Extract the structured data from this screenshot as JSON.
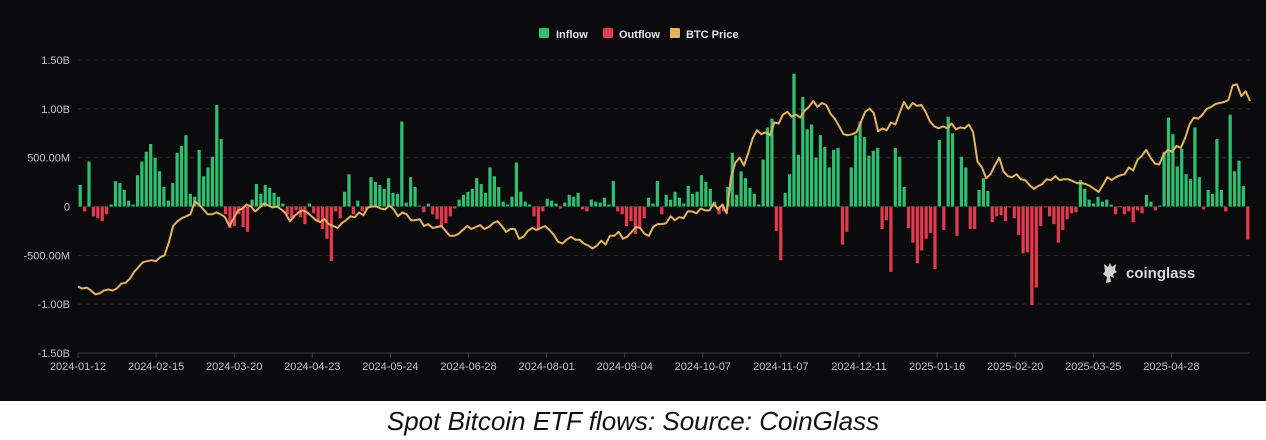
{
  "caption": "Spot Bitcoin ETF flows: Source: CoinGlass",
  "brand": {
    "text": "coinglass",
    "icon": "coinglass-logo-icon"
  },
  "colors": {
    "inflow": "#2fbf71",
    "outflow": "#e5394f",
    "price": "#e3b35f",
    "background": "#0b0b0d",
    "grid": "#2a2c31"
  },
  "chart_data": {
    "type": "bar",
    "legend": {
      "position": "top-center",
      "items": [
        {
          "label": "Inflow",
          "color": "#2fbf71"
        },
        {
          "label": "Outflow",
          "color": "#e5394f"
        },
        {
          "label": "BTC Price",
          "color": "#e3b35f"
        }
      ]
    },
    "y_axis": {
      "ticks": [
        1.5,
        1.0,
        0.5,
        0,
        -0.5,
        -1.0,
        -1.5
      ],
      "tick_labels": [
        "1.50B",
        "1.00B",
        "500.00M",
        "0",
        "-500.00M",
        "-1.00B",
        "-1.50B"
      ],
      "ylim": [
        -1.5,
        1.5
      ],
      "unit": "billion USD"
    },
    "x_axis": {
      "tick_labels": [
        "2024-01-12",
        "2024-02-15",
        "2024-03-20",
        "2024-04-23",
        "2024-05-24",
        "2024-06-28",
        "2024-08-01",
        "2024-09-04",
        "2024-10-07",
        "2024-11-07",
        "2024-12-11",
        "2025-01-16",
        "2025-02-20",
        "2025-03-25",
        "2025-04-28"
      ],
      "range": [
        "2024-01-12",
        "2025-05-28"
      ]
    },
    "grid": "horizontal dashed",
    "series": [
      {
        "name": "Inflow / Outflow",
        "type": "bar",
        "values": [
          0.22,
          -0.05,
          0.46,
          -0.1,
          -0.12,
          -0.15,
          -0.08,
          0.02,
          0.26,
          0.24,
          0.17,
          0.06,
          0.02,
          0.32,
          0.46,
          0.56,
          0.64,
          0.5,
          0.36,
          0.2,
          0.06,
          0.24,
          0.55,
          0.62,
          0.73,
          0.13,
          0.1,
          0.58,
          0.31,
          0.4,
          0.51,
          1.04,
          0.69,
          -0.08,
          -0.22,
          -0.2,
          -0.08,
          -0.21,
          -0.26,
          0.07,
          0.23,
          0.13,
          0.22,
          0.19,
          0.14,
          0.1,
          0.03,
          -0.08,
          -0.12,
          -0.04,
          -0.11,
          -0.18,
          0.03,
          -0.07,
          -0.15,
          -0.23,
          -0.33,
          -0.56,
          -0.05,
          -0.12,
          0.15,
          0.33,
          -0.08,
          0.06,
          -0.05,
          -0.03,
          0.3,
          0.25,
          0.22,
          0.18,
          0.29,
          0.14,
          0.13,
          0.87,
          0.04,
          0.3,
          0.2,
          0.01,
          -0.06,
          0.03,
          -0.08,
          -0.13,
          -0.2,
          -0.17,
          -0.1,
          -0.02,
          0.07,
          0.12,
          0.15,
          0.18,
          0.29,
          0.23,
          0.14,
          0.4,
          0.31,
          0.2,
          0.05,
          0.02,
          0.1,
          0.45,
          0.15,
          0.05,
          0.02,
          -0.1,
          -0.23,
          -0.05,
          0.08,
          0.06,
          0.03,
          -0.02,
          0.04,
          0.12,
          0.1,
          0.14,
          -0.03,
          -0.05,
          0.07,
          0.05,
          0.04,
          0.09,
          0.02,
          0.26,
          -0.05,
          -0.08,
          -0.2,
          -0.15,
          -0.28,
          -0.21,
          -0.12,
          0.09,
          0.03,
          0.26,
          -0.08,
          0.12,
          0.07,
          0.15,
          0.09,
          0.03,
          0.21,
          0.13,
          0.15,
          0.32,
          0.25,
          0.18,
          0.05,
          -0.08,
          -0.05,
          0.2,
          0.55,
          0.12,
          0.36,
          0.29,
          0.19,
          0.13,
          0.02,
          0.48,
          0.81,
          0.9,
          -0.25,
          -0.55,
          0.14,
          0.33,
          1.36,
          0.53,
          1.12,
          0.79,
          0.84,
          0.5,
          0.73,
          0.61,
          0.4,
          0.58,
          0.6,
          -0.39,
          -0.26,
          0.4,
          0.73,
          0.87,
          0.71,
          0.52,
          0.57,
          0.6,
          -0.23,
          -0.14,
          -0.67,
          0.6,
          0.51,
          0.2,
          -0.22,
          -0.37,
          -0.58,
          -0.45,
          -0.33,
          -0.27,
          -0.64,
          0.68,
          -0.24,
          0.92,
          0.75,
          -0.3,
          0.51,
          0.4,
          -0.23,
          -0.23,
          0.17,
          0.29,
          0.16,
          -0.16,
          -0.1,
          -0.09,
          -0.15,
          -0.01,
          -0.12,
          -0.29,
          -0.48,
          -0.47,
          -1.01,
          -0.83,
          -0.2,
          -0.01,
          -0.1,
          -0.18,
          -0.37,
          -0.24,
          -0.13,
          -0.07,
          -0.06,
          0.27,
          0.18,
          0.07,
          0.03,
          0.1,
          0.05,
          0.07,
          0.02,
          -0.08,
          -0.01,
          -0.08,
          -0.05,
          -0.16,
          -0.04,
          -0.07,
          0.12,
          0.05,
          -0.04,
          0.01,
          0.56,
          0.91,
          0.74,
          0.41,
          0.59,
          0.33,
          0.28,
          0.81,
          0.3,
          -0.03,
          0.17,
          0.13,
          0.69,
          0.17,
          -0.05,
          0.94,
          0.36,
          0.47,
          0.21,
          -0.34
        ]
      },
      {
        "name": "BTC Price",
        "type": "line",
        "values": [
          -0.82,
          -0.84,
          -0.83,
          -0.86,
          -0.9,
          -0.89,
          -0.86,
          -0.85,
          -0.86,
          -0.84,
          -0.79,
          -0.78,
          -0.74,
          -0.67,
          -0.62,
          -0.57,
          -0.56,
          -0.55,
          -0.56,
          -0.52,
          -0.5,
          -0.37,
          -0.2,
          -0.15,
          -0.12,
          -0.1,
          -0.08,
          0.05,
          0.02,
          -0.03,
          -0.08,
          -0.08,
          -0.06,
          -0.08,
          -0.11,
          -0.2,
          -0.12,
          -0.04,
          -0.02,
          0.02,
          0.0,
          -0.05,
          -0.01,
          0.03,
          0.01,
          -0.01,
          0.0,
          -0.03,
          -0.07,
          -0.15,
          -0.1,
          -0.06,
          -0.04,
          -0.06,
          -0.1,
          -0.14,
          -0.16,
          -0.13,
          -0.18,
          -0.2,
          -0.22,
          -0.17,
          -0.14,
          -0.1,
          -0.11,
          -0.06,
          -0.09,
          -0.01,
          0.0,
          0.0,
          -0.02,
          -0.03,
          0.01,
          -0.03,
          -0.1,
          -0.06,
          -0.08,
          -0.14,
          -0.14,
          -0.13,
          -0.2,
          -0.18,
          -0.22,
          -0.21,
          -0.2,
          -0.25,
          -0.3,
          -0.3,
          -0.28,
          -0.24,
          -0.2,
          -0.23,
          -0.21,
          -0.19,
          -0.23,
          -0.21,
          -0.17,
          -0.15,
          -0.2,
          -0.26,
          -0.23,
          -0.23,
          -0.33,
          -0.31,
          -0.25,
          -0.22,
          -0.24,
          -0.22,
          -0.2,
          -0.24,
          -0.29,
          -0.36,
          -0.38,
          -0.34,
          -0.31,
          -0.34,
          -0.34,
          -0.38,
          -0.4,
          -0.43,
          -0.4,
          -0.35,
          -0.39,
          -0.3,
          -0.3,
          -0.26,
          -0.33,
          -0.31,
          -0.26,
          -0.21,
          -0.22,
          -0.28,
          -0.3,
          -0.21,
          -0.18,
          -0.18,
          -0.17,
          -0.1,
          -0.14,
          -0.11,
          -0.12,
          -0.05,
          -0.05,
          -0.07,
          -0.02,
          -0.04,
          -0.04,
          0.03,
          -0.03,
          0.02,
          -0.07,
          0.3,
          0.45,
          0.5,
          0.42,
          0.55,
          0.7,
          0.78,
          0.74,
          0.76,
          0.73,
          0.86,
          0.85,
          0.94,
          0.97,
          0.92,
          0.94,
          0.91,
          0.98,
          1.02,
          1.08,
          1.02,
          1.06,
          1.04,
          0.95,
          0.9,
          0.82,
          0.74,
          0.73,
          0.74,
          0.76,
          0.86,
          0.97,
          1.0,
          0.96,
          0.77,
          0.8,
          0.78,
          0.86,
          0.84,
          0.96,
          1.07,
          1.0,
          1.06,
          1.03,
          1.04,
          0.97,
          0.87,
          0.82,
          0.8,
          0.82,
          0.8,
          0.85,
          0.79,
          0.81,
          0.8,
          0.84,
          0.76,
          0.46,
          0.4,
          0.29,
          0.33,
          0.42,
          0.5,
          0.36,
          0.31,
          0.3,
          0.33,
          0.28,
          0.27,
          0.22,
          0.18,
          0.21,
          0.23,
          0.28,
          0.27,
          0.31,
          0.27,
          0.28,
          0.28,
          0.26,
          0.24,
          0.24,
          0.23,
          0.21,
          0.18,
          0.15,
          0.22,
          0.3,
          0.27,
          0.3,
          0.32,
          0.33,
          0.4,
          0.37,
          0.48,
          0.52,
          0.58,
          0.5,
          0.44,
          0.43,
          0.53,
          0.58,
          0.56,
          0.62,
          0.6,
          0.7,
          0.84,
          0.91,
          0.9,
          0.94,
          1.0,
          1.02,
          1.05,
          1.06,
          1.07,
          1.09,
          1.24,
          1.25,
          1.13,
          1.18,
          1.08
        ]
      }
    ]
  }
}
